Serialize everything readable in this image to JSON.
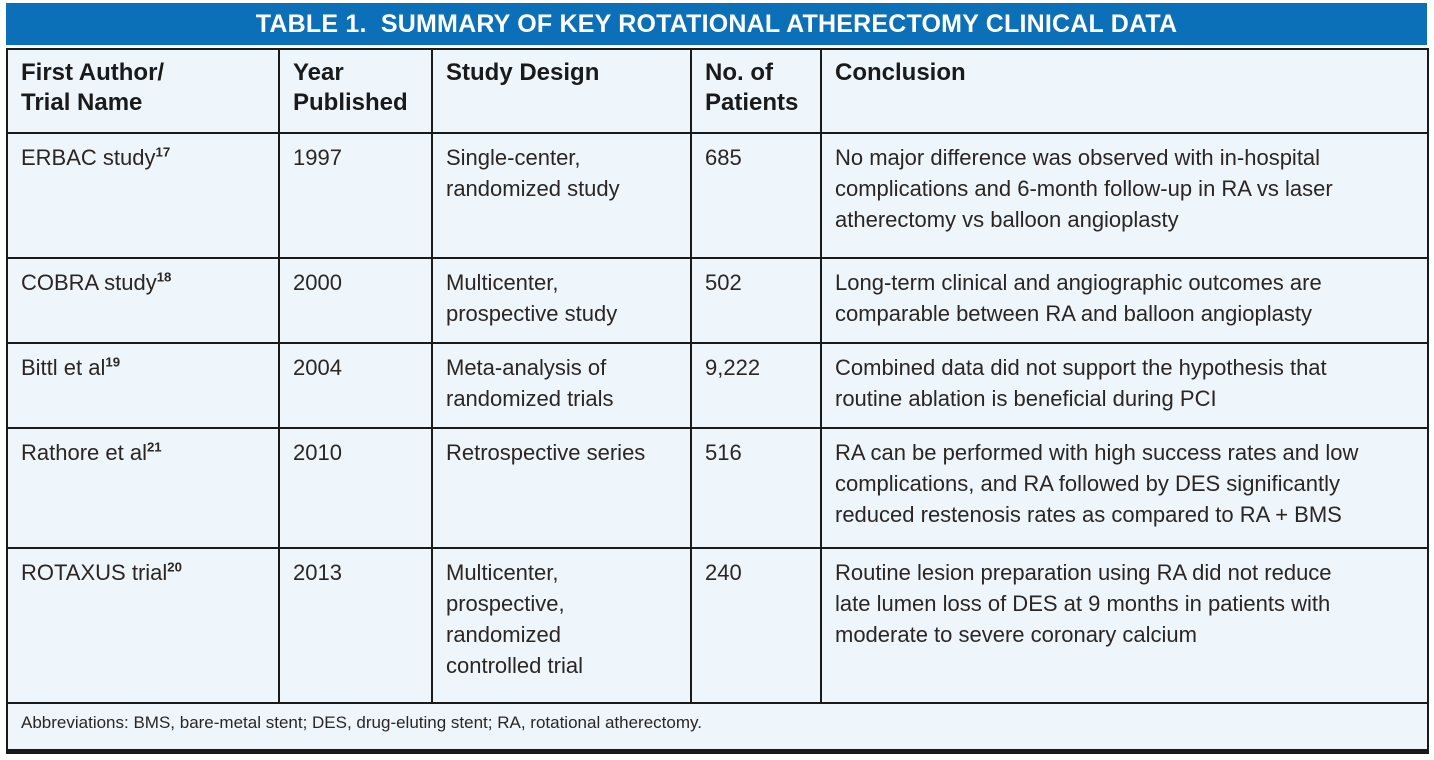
{
  "title": "TABLE 1.  SUMMARY OF KEY ROTATIONAL ATHERECTOMY CLINICAL DATA",
  "colors": {
    "title_bar_bg": "#0b70b8",
    "title_text": "#ffffff",
    "cell_bg": "#eef5fb",
    "border": "#1a1a1a",
    "body_text": "#2b2623"
  },
  "table": {
    "headers": [
      "First Author/\nTrial Name",
      "Year\nPublished",
      "Study Design",
      "No. of\nPatients",
      "Conclusion"
    ],
    "rows": [
      {
        "author": "ERBAC study",
        "ref": "17",
        "year": "1997",
        "design": "Single-center,\nrandomized study",
        "patients": "685",
        "conclusion": "No major difference was observed with in-hospital\ncomplications and 6-month follow-up in RA vs laser\natherectomy vs balloon angioplasty"
      },
      {
        "author": "COBRA study",
        "ref": "18",
        "year": "2000",
        "design": "Multicenter,\nprospective study",
        "patients": "502",
        "conclusion": "Long-term clinical and angiographic outcomes are\ncomparable between RA and balloon angioplasty"
      },
      {
        "author": "Bittl et al",
        "ref": "19",
        "year": "2004",
        "design": "Meta-analysis of\nrandomized trials",
        "patients": "9,222",
        "conclusion": "Combined data did not support the hypothesis that\nroutine ablation is beneficial during PCI"
      },
      {
        "author": "Rathore et al",
        "ref": "21",
        "year": "2010",
        "design": "Retrospective series",
        "patients": "516",
        "conclusion": "RA can be performed with high success rates and low\ncomplications, and RA followed by DES significantly\nreduced restenosis rates as compared to RA + BMS"
      },
      {
        "author": "ROTAXUS trial",
        "ref": "20",
        "year": "2013",
        "design": "Multicenter,\nprospective,\nrandomized\ncontrolled trial",
        "patients": "240",
        "conclusion": "Routine lesion preparation using RA did not reduce\nlate lumen loss of DES at 9 months in patients with\nmoderate to severe coronary calcium"
      }
    ],
    "footnote": "Abbreviations: BMS, bare-metal stent; DES, drug-eluting stent; RA, rotational atherectomy."
  }
}
